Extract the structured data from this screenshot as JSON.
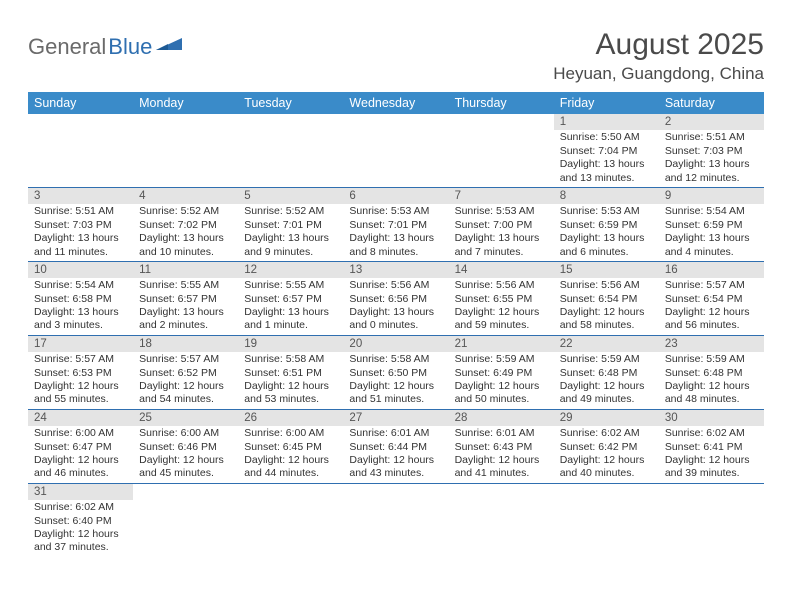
{
  "logo": {
    "general": "General",
    "blue": "Blue"
  },
  "title": {
    "month": "August 2025",
    "location": "Heyuan, Guangdong, China"
  },
  "colors": {
    "header_bg": "#3a8bc9",
    "header_text": "#ffffff",
    "daynum_bg": "#e4e4e4",
    "daynum_text": "#555555",
    "rule_color": "#2f6fb0",
    "body_text": "#333333",
    "title_text": "#4a4a4a",
    "logo_general": "#6a6a6a",
    "logo_blue": "#2f6fb0",
    "logo_icon_fill": "#2f6fb0"
  },
  "weekdays": [
    "Sunday",
    "Monday",
    "Tuesday",
    "Wednesday",
    "Thursday",
    "Friday",
    "Saturday"
  ],
  "weeks": [
    [
      null,
      null,
      null,
      null,
      null,
      {
        "num": "1",
        "sunrise": "5:50 AM",
        "sunset": "7:04 PM",
        "daylight": "13 hours and 13 minutes."
      },
      {
        "num": "2",
        "sunrise": "5:51 AM",
        "sunset": "7:03 PM",
        "daylight": "13 hours and 12 minutes."
      }
    ],
    [
      {
        "num": "3",
        "sunrise": "5:51 AM",
        "sunset": "7:03 PM",
        "daylight": "13 hours and 11 minutes."
      },
      {
        "num": "4",
        "sunrise": "5:52 AM",
        "sunset": "7:02 PM",
        "daylight": "13 hours and 10 minutes."
      },
      {
        "num": "5",
        "sunrise": "5:52 AM",
        "sunset": "7:01 PM",
        "daylight": "13 hours and 9 minutes."
      },
      {
        "num": "6",
        "sunrise": "5:53 AM",
        "sunset": "7:01 PM",
        "daylight": "13 hours and 8 minutes."
      },
      {
        "num": "7",
        "sunrise": "5:53 AM",
        "sunset": "7:00 PM",
        "daylight": "13 hours and 7 minutes."
      },
      {
        "num": "8",
        "sunrise": "5:53 AM",
        "sunset": "6:59 PM",
        "daylight": "13 hours and 6 minutes."
      },
      {
        "num": "9",
        "sunrise": "5:54 AM",
        "sunset": "6:59 PM",
        "daylight": "13 hours and 4 minutes."
      }
    ],
    [
      {
        "num": "10",
        "sunrise": "5:54 AM",
        "sunset": "6:58 PM",
        "daylight": "13 hours and 3 minutes."
      },
      {
        "num": "11",
        "sunrise": "5:55 AM",
        "sunset": "6:57 PM",
        "daylight": "13 hours and 2 minutes."
      },
      {
        "num": "12",
        "sunrise": "5:55 AM",
        "sunset": "6:57 PM",
        "daylight": "13 hours and 1 minute."
      },
      {
        "num": "13",
        "sunrise": "5:56 AM",
        "sunset": "6:56 PM",
        "daylight": "13 hours and 0 minutes."
      },
      {
        "num": "14",
        "sunrise": "5:56 AM",
        "sunset": "6:55 PM",
        "daylight": "12 hours and 59 minutes."
      },
      {
        "num": "15",
        "sunrise": "5:56 AM",
        "sunset": "6:54 PM",
        "daylight": "12 hours and 58 minutes."
      },
      {
        "num": "16",
        "sunrise": "5:57 AM",
        "sunset": "6:54 PM",
        "daylight": "12 hours and 56 minutes."
      }
    ],
    [
      {
        "num": "17",
        "sunrise": "5:57 AM",
        "sunset": "6:53 PM",
        "daylight": "12 hours and 55 minutes."
      },
      {
        "num": "18",
        "sunrise": "5:57 AM",
        "sunset": "6:52 PM",
        "daylight": "12 hours and 54 minutes."
      },
      {
        "num": "19",
        "sunrise": "5:58 AM",
        "sunset": "6:51 PM",
        "daylight": "12 hours and 53 minutes."
      },
      {
        "num": "20",
        "sunrise": "5:58 AM",
        "sunset": "6:50 PM",
        "daylight": "12 hours and 51 minutes."
      },
      {
        "num": "21",
        "sunrise": "5:59 AM",
        "sunset": "6:49 PM",
        "daylight": "12 hours and 50 minutes."
      },
      {
        "num": "22",
        "sunrise": "5:59 AM",
        "sunset": "6:48 PM",
        "daylight": "12 hours and 49 minutes."
      },
      {
        "num": "23",
        "sunrise": "5:59 AM",
        "sunset": "6:48 PM",
        "daylight": "12 hours and 48 minutes."
      }
    ],
    [
      {
        "num": "24",
        "sunrise": "6:00 AM",
        "sunset": "6:47 PM",
        "daylight": "12 hours and 46 minutes."
      },
      {
        "num": "25",
        "sunrise": "6:00 AM",
        "sunset": "6:46 PM",
        "daylight": "12 hours and 45 minutes."
      },
      {
        "num": "26",
        "sunrise": "6:00 AM",
        "sunset": "6:45 PM",
        "daylight": "12 hours and 44 minutes."
      },
      {
        "num": "27",
        "sunrise": "6:01 AM",
        "sunset": "6:44 PM",
        "daylight": "12 hours and 43 minutes."
      },
      {
        "num": "28",
        "sunrise": "6:01 AM",
        "sunset": "6:43 PM",
        "daylight": "12 hours and 41 minutes."
      },
      {
        "num": "29",
        "sunrise": "6:02 AM",
        "sunset": "6:42 PM",
        "daylight": "12 hours and 40 minutes."
      },
      {
        "num": "30",
        "sunrise": "6:02 AM",
        "sunset": "6:41 PM",
        "daylight": "12 hours and 39 minutes."
      }
    ],
    [
      {
        "num": "31",
        "sunrise": "6:02 AM",
        "sunset": "6:40 PM",
        "daylight": "12 hours and 37 minutes."
      },
      null,
      null,
      null,
      null,
      null,
      null
    ]
  ],
  "labels": {
    "sunrise": "Sunrise: ",
    "sunset": "Sunset: ",
    "daylight": "Daylight: "
  }
}
